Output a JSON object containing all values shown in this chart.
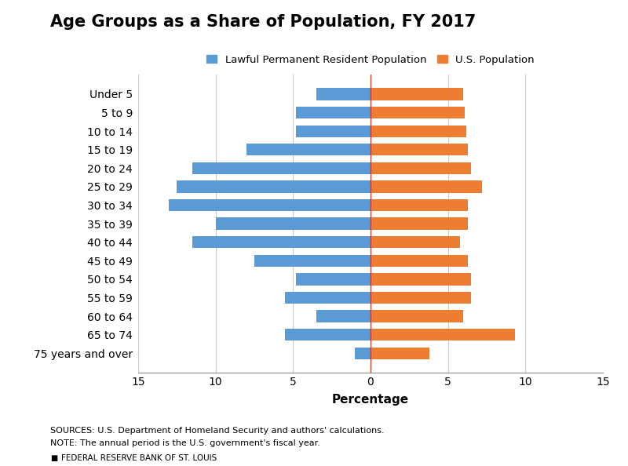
{
  "title": "Age Groups as a Share of Population, FY 2017",
  "categories": [
    "75 years and over",
    "65 to 74",
    "60 to 64",
    "55 to 59",
    "50 to 54",
    "45 to 49",
    "40 to 44",
    "35 to 39",
    "30 to 34",
    "25 to 29",
    "20 to 24",
    "15 to 19",
    "10 to 14",
    "5 to 9",
    "Under 5"
  ],
  "lpr_values": [
    -1.0,
    -5.5,
    -3.5,
    -5.5,
    -4.8,
    -7.5,
    -11.5,
    -10.0,
    -13.0,
    -12.5,
    -11.5,
    -8.0,
    -4.8,
    -4.8,
    -3.5
  ],
  "us_values": [
    3.8,
    9.3,
    6.0,
    6.5,
    6.5,
    6.3,
    5.8,
    6.3,
    6.3,
    7.2,
    6.5,
    6.3,
    6.2,
    6.1,
    6.0
  ],
  "lpr_color": "#5b9bd5",
  "us_color": "#ed7d31",
  "xlabel": "Percentage",
  "xlim": [
    -15,
    15
  ],
  "xticks": [
    -15,
    -10,
    -5,
    0,
    5,
    10,
    15
  ],
  "xticklabels": [
    "15",
    "10",
    "5",
    "0",
    "5",
    "10",
    "15"
  ],
  "legend_lpr": "Lawful Permanent Resident Population",
  "legend_us": "U.S. Population",
  "source_text": "SOURCES: U.S. Department of Homeland Security and authors' calculations.",
  "note_text": "NOTE: The annual period is the U.S. government's fiscal year.",
  "footer_text": "FEDERAL RESERVE BANK OF ST. LOUIS",
  "title_fontsize": 15,
  "bar_height": 0.65
}
